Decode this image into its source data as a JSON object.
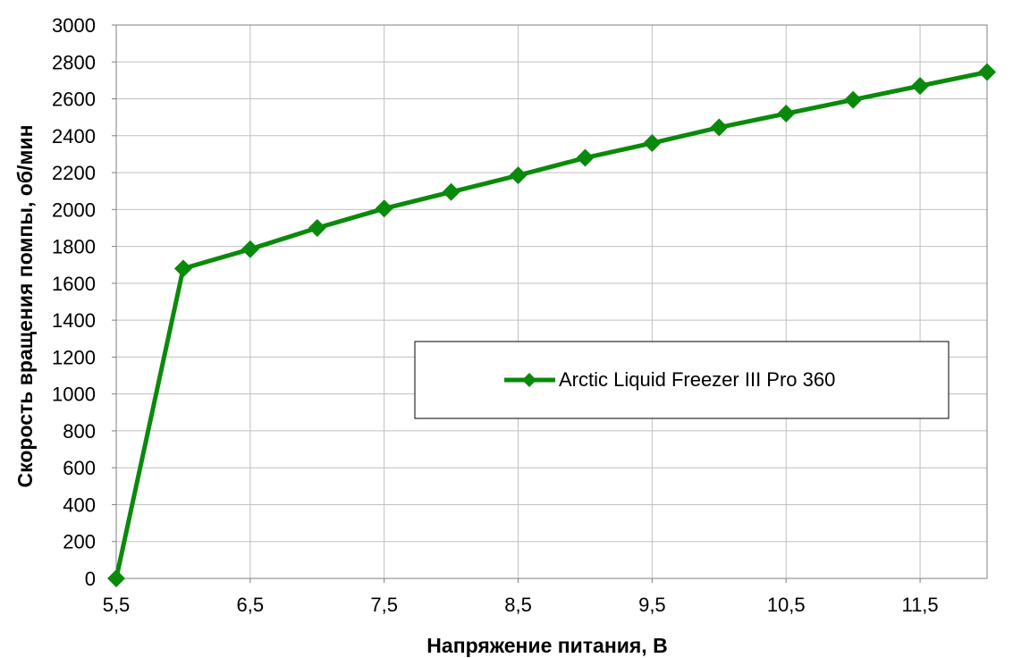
{
  "chart_data": {
    "type": "line",
    "xlabel": "Напряжение питания, В",
    "ylabel": "Скорость вращения помпы, об/мин",
    "xlim": [
      5.5,
      12
    ],
    "ylim": [
      0,
      3000
    ],
    "x_ticks": [
      5.5,
      6.5,
      7.5,
      8.5,
      9.5,
      10.5,
      11.5
    ],
    "x_tick_labels": [
      "5,5",
      "6,5",
      "7,5",
      "8,5",
      "9,5",
      "10,5",
      "11,5"
    ],
    "y_ticks": [
      0,
      200,
      400,
      600,
      800,
      1000,
      1200,
      1400,
      1600,
      1800,
      2000,
      2200,
      2400,
      2600,
      2800,
      3000
    ],
    "y_tick_labels": [
      "0",
      "200",
      "400",
      "600",
      "800",
      "1000",
      "1200",
      "1400",
      "1600",
      "1800",
      "2000",
      "2200",
      "2400",
      "2600",
      "2800",
      "3000"
    ],
    "grid": true,
    "legend_position": "center-right",
    "series": [
      {
        "name": "Arctic Liquid Freezer III Pro 360",
        "color": "#0a8a0a",
        "marker": "diamond",
        "x": [
          5.5,
          6.0,
          6.5,
          7.0,
          7.5,
          8.0,
          8.5,
          9.0,
          9.5,
          10.0,
          10.5,
          11.0,
          11.5,
          12.0
        ],
        "y": [
          0,
          1680,
          1785,
          1900,
          2005,
          2095,
          2185,
          2280,
          2360,
          2445,
          2520,
          2595,
          2670,
          2745
        ]
      }
    ]
  }
}
